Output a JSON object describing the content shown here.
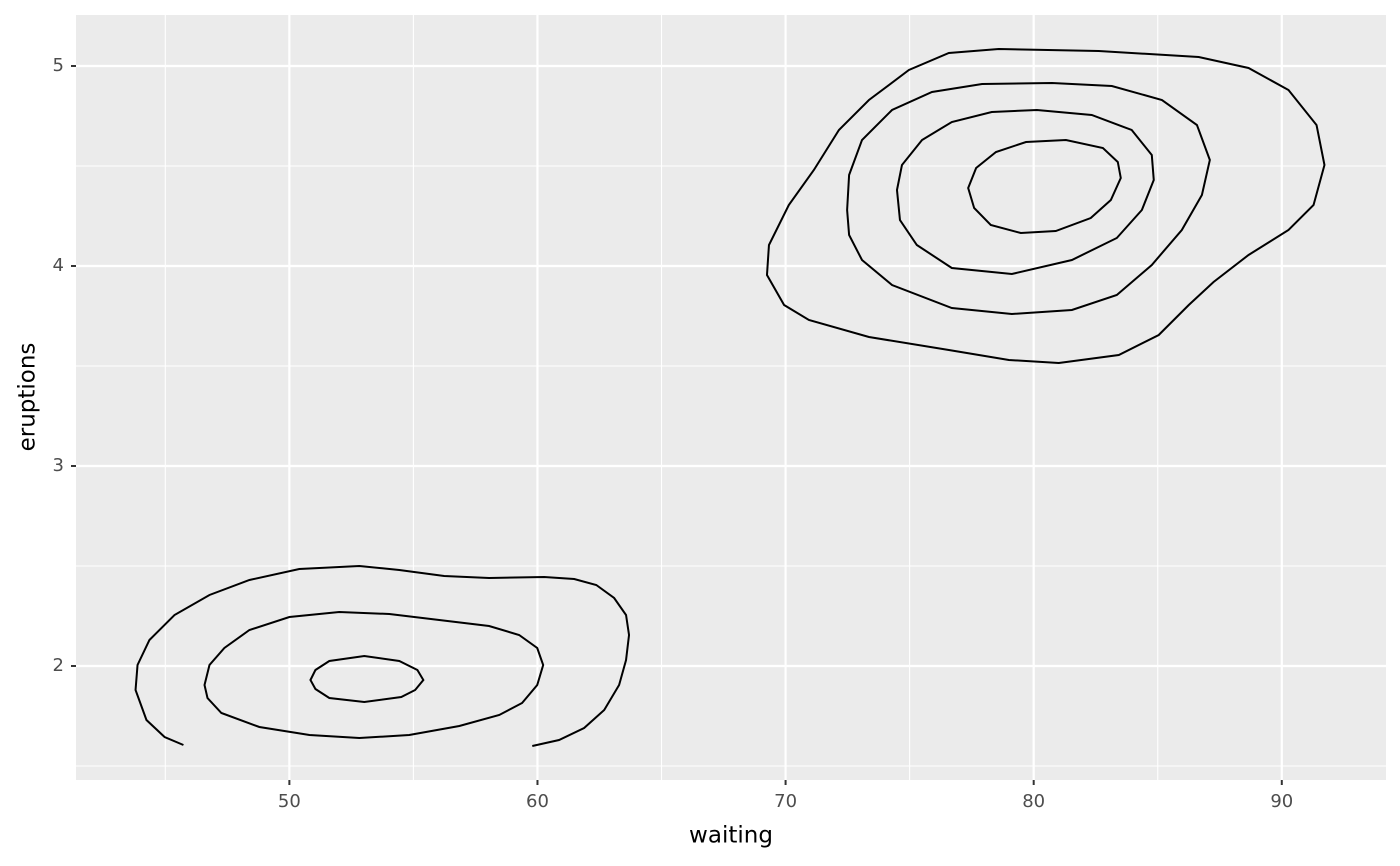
{
  "chart_data": {
    "type": "contour",
    "x_label": "waiting",
    "y_label": "eruptions",
    "xlim": [
      41.4,
      94.2
    ],
    "ylim": [
      1.43,
      5.255
    ],
    "xticks": [
      50,
      60,
      70,
      80,
      90
    ],
    "yticks": [
      2,
      3,
      4,
      5
    ],
    "x_minor_ticks": [
      45,
      55,
      65,
      75,
      85
    ],
    "y_minor_ticks": [
      1.5,
      2.5,
      3.5,
      4.5
    ],
    "grid": true,
    "color": "#000000",
    "series": [
      {
        "closed": false,
        "x": [
          45.73,
          44.97,
          44.24,
          43.8,
          43.88,
          44.36,
          45.37,
          46.78,
          48.39,
          50.4,
          52.82,
          54.43,
          56.24,
          58.05,
          60.27,
          61.48,
          62.37,
          63.09,
          63.57,
          63.69,
          63.57,
          63.29,
          62.69,
          61.88,
          60.87,
          59.79
        ],
        "y": [
          1.605,
          1.645,
          1.73,
          1.88,
          2.005,
          2.13,
          2.255,
          2.355,
          2.43,
          2.485,
          2.5,
          2.48,
          2.45,
          2.44,
          2.445,
          2.435,
          2.405,
          2.34,
          2.255,
          2.155,
          2.03,
          1.905,
          1.78,
          1.69,
          1.63,
          1.6
        ]
      },
      {
        "closed": true,
        "x": [
          46.58,
          46.78,
          47.38,
          48.39,
          50,
          52.01,
          54.03,
          56.04,
          58.05,
          59.26,
          59.99,
          60.23,
          59.99,
          59.38,
          58.46,
          56.85,
          54.83,
          52.82,
          50.81,
          48.79,
          47.26,
          46.7
        ],
        "y": [
          1.905,
          2.005,
          2.09,
          2.18,
          2.245,
          2.27,
          2.26,
          2.23,
          2.2,
          2.155,
          2.09,
          2.005,
          1.905,
          1.815,
          1.755,
          1.7,
          1.655,
          1.64,
          1.655,
          1.695,
          1.765,
          1.84
        ]
      },
      {
        "closed": true,
        "x": [
          50.85,
          51.05,
          51.61,
          53.02,
          54.43,
          55.16,
          55.4,
          55.07,
          54.51,
          53.02,
          51.61,
          51.05
        ],
        "y": [
          1.93,
          1.98,
          2.025,
          2.05,
          2.025,
          1.98,
          1.93,
          1.88,
          1.845,
          1.82,
          1.84,
          1.885
        ]
      },
      {
        "closed": true,
        "x": [
          81.01,
          83.43,
          85.04,
          86.25,
          87.25,
          88.66,
          90.27,
          91.28,
          91.72,
          91.4,
          90.27,
          88.66,
          86.65,
          82.62,
          78.59,
          76.58,
          74.97,
          73.36,
          72.15,
          71.14,
          70.13,
          69.33,
          69.25,
          69.94,
          70.94,
          73.36,
          76.58,
          79
        ],
        "y": [
          3.515,
          3.555,
          3.655,
          3.805,
          3.92,
          4.055,
          4.18,
          4.305,
          4.505,
          4.705,
          4.88,
          4.99,
          5.045,
          5.075,
          5.085,
          5.065,
          4.98,
          4.83,
          4.68,
          4.48,
          4.305,
          4.105,
          3.955,
          3.805,
          3.73,
          3.645,
          3.58,
          3.53
        ]
      },
      {
        "closed": true,
        "x": [
          72.48,
          72.56,
          73.08,
          74.29,
          75.9,
          77.92,
          80.74,
          83.15,
          85.17,
          86.58,
          87.1,
          86.78,
          85.97,
          84.76,
          83.35,
          81.54,
          79.12,
          76.7,
          74.29,
          73.08,
          72.56
        ],
        "y": [
          4.28,
          4.455,
          4.63,
          4.78,
          4.87,
          4.91,
          4.915,
          4.9,
          4.83,
          4.705,
          4.53,
          4.355,
          4.18,
          4.005,
          3.855,
          3.78,
          3.76,
          3.79,
          3.905,
          4.03,
          4.155
        ]
      },
      {
        "closed": true,
        "x": [
          74.49,
          74.69,
          75.5,
          76.7,
          78.31,
          80.13,
          82.34,
          83.95,
          84.76,
          84.84,
          84.36,
          83.35,
          81.54,
          79.12,
          76.7,
          75.29,
          74.61
        ],
        "y": [
          4.38,
          4.505,
          4.63,
          4.72,
          4.77,
          4.78,
          4.755,
          4.68,
          4.555,
          4.43,
          4.28,
          4.14,
          4.03,
          3.96,
          3.99,
          4.105,
          4.23
        ]
      },
      {
        "closed": true,
        "x": [
          77.36,
          77.68,
          78.48,
          79.69,
          81.3,
          82.79,
          83.39,
          83.51,
          83.11,
          82.3,
          80.89,
          79.48,
          78.27,
          77.6
        ],
        "y": [
          4.39,
          4.49,
          4.57,
          4.62,
          4.63,
          4.59,
          4.52,
          4.44,
          4.33,
          4.24,
          4.175,
          4.165,
          4.205,
          4.29
        ]
      }
    ]
  }
}
